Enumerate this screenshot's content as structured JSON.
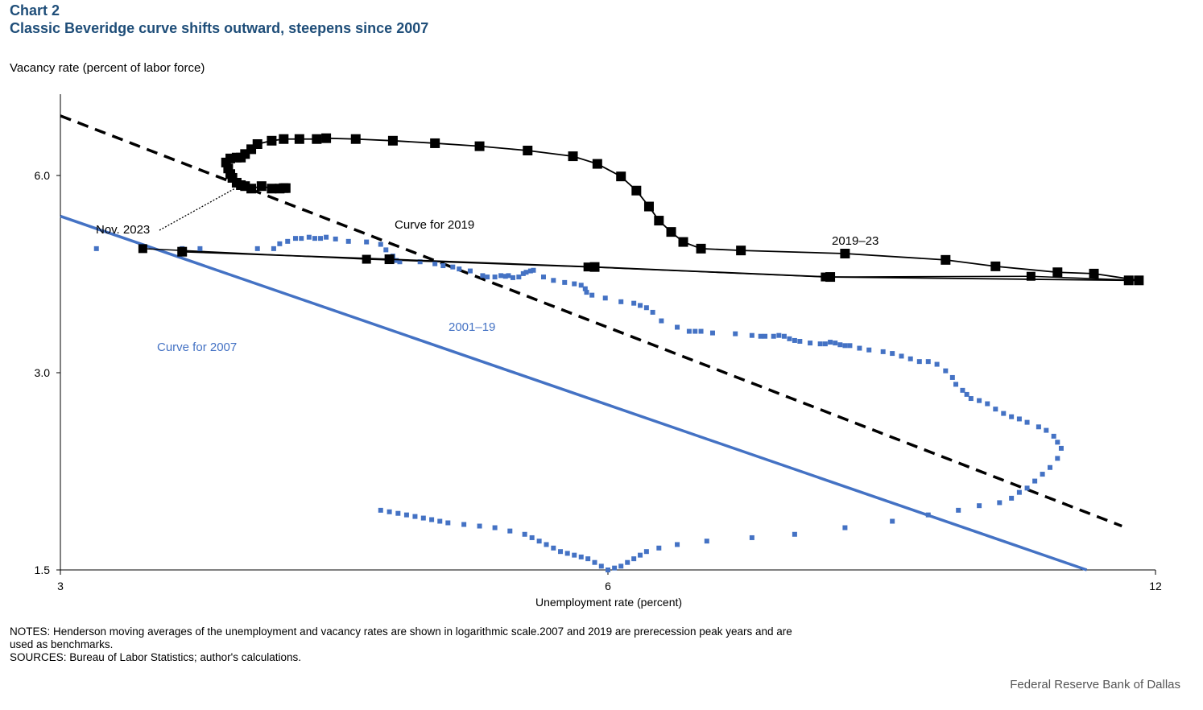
{
  "header": {
    "chart_number": "Chart 2",
    "title": "Classic Beveridge curve shifts outward, steepens since 2007"
  },
  "footer": {
    "notes": "NOTES: Henderson moving averages of the unemployment and vacancy rates are shown in logarithmic scale.2007 and 2019 are prerecession peak years and are used as benchmarks.",
    "sources": "SOURCES: Bureau of Labor Statistics; author's calculations.",
    "credit": "Federal Reserve Bank of Dallas"
  },
  "chart_data": {
    "type": "scatter",
    "xlabel": "Unemployment  rate (percent)",
    "ylabel": "Vacancy rate (percent of labor force)",
    "x_scale": "log",
    "y_scale": "log",
    "xlim": [
      3,
      12
    ],
    "ylim": [
      1.5,
      7.5
    ],
    "x_ticks": [
      3,
      6,
      12
    ],
    "x_tick_labels": [
      "3",
      "6",
      "12"
    ],
    "y_ticks": [
      1.5,
      3.0,
      6.0
    ],
    "y_tick_labels": [
      "1.5",
      "3.0",
      "6.0"
    ],
    "grid": false,
    "colors": {
      "black": "#000000",
      "blue": "#4472c4",
      "title_blue": "#1f4e79"
    },
    "annotations": {
      "nov_2023": "Nov. 2023",
      "curve_2019": "Curve for 2019",
      "curve_2007": "Curve for 2007",
      "period_2001_19": "2001–19",
      "period_2019_23": "2019–23"
    },
    "series": [
      {
        "name": "2019–23",
        "style": "black line with square markers",
        "points": [
          [
            3.5,
            4.59
          ],
          [
            4.55,
            4.47
          ],
          [
            5.9,
            4.35
          ],
          [
            7.95,
            4.2
          ],
          [
            11.6,
            4.15
          ],
          [
            11.75,
            4.15
          ],
          [
            11.1,
            4.25
          ],
          [
            10.6,
            4.27
          ],
          [
            9.8,
            4.36
          ],
          [
            9.2,
            4.46
          ],
          [
            8.1,
            4.56
          ],
          [
            7.1,
            4.61
          ],
          [
            6.75,
            4.64
          ],
          [
            6.6,
            4.75
          ],
          [
            6.5,
            4.92
          ],
          [
            6.4,
            5.12
          ],
          [
            6.32,
            5.38
          ],
          [
            6.22,
            5.69
          ],
          [
            6.1,
            5.98
          ],
          [
            5.92,
            6.25
          ],
          [
            5.74,
            6.42
          ],
          [
            5.42,
            6.55
          ],
          [
            5.1,
            6.65
          ],
          [
            4.82,
            6.72
          ],
          [
            4.57,
            6.78
          ],
          [
            4.36,
            6.82
          ],
          [
            4.2,
            6.84
          ],
          [
            4.15,
            6.82
          ],
          [
            4.06,
            6.82
          ],
          [
            3.98,
            6.82
          ],
          [
            3.92,
            6.78
          ],
          [
            3.85,
            6.7
          ],
          [
            3.82,
            6.58
          ],
          [
            3.79,
            6.47
          ],
          [
            3.77,
            6.39
          ],
          [
            3.75,
            6.39
          ],
          [
            3.72,
            6.37
          ],
          [
            3.7,
            6.28
          ],
          [
            3.71,
            6.15
          ],
          [
            3.72,
            6.03
          ],
          [
            3.73,
            5.95
          ],
          [
            3.75,
            5.85
          ],
          [
            3.77,
            5.8
          ],
          [
            3.79,
            5.78
          ],
          [
            3.82,
            5.73
          ],
          [
            3.87,
            5.78
          ],
          [
            3.92,
            5.73
          ],
          [
            3.96,
            5.73
          ],
          [
            3.98,
            5.74
          ],
          [
            3.99,
            5.74
          ]
        ]
      },
      {
        "name": "2001–19",
        "style": "blue square markers",
        "points": [
          [
            3.14,
            4.64
          ],
          [
            3.5,
            4.64
          ],
          [
            3.58,
            4.64
          ],
          [
            3.85,
            4.64
          ],
          [
            3.93,
            4.64
          ],
          [
            3.96,
            4.72
          ],
          [
            4.0,
            4.76
          ],
          [
            4.04,
            4.81
          ],
          [
            4.07,
            4.81
          ],
          [
            4.11,
            4.83
          ],
          [
            4.14,
            4.81
          ],
          [
            4.17,
            4.81
          ],
          [
            4.2,
            4.83
          ],
          [
            4.25,
            4.8
          ],
          [
            4.32,
            4.76
          ],
          [
            4.42,
            4.75
          ],
          [
            4.5,
            4.71
          ],
          [
            4.53,
            4.62
          ],
          [
            4.57,
            4.52
          ],
          [
            4.59,
            4.45
          ],
          [
            4.61,
            4.43
          ],
          [
            4.73,
            4.43
          ],
          [
            4.82,
            4.4
          ],
          [
            4.87,
            4.37
          ],
          [
            4.93,
            4.35
          ],
          [
            4.97,
            4.32
          ],
          [
            5.04,
            4.29
          ],
          [
            5.12,
            4.22
          ],
          [
            5.15,
            4.2
          ],
          [
            5.2,
            4.2
          ],
          [
            5.24,
            4.22
          ],
          [
            5.27,
            4.21
          ],
          [
            5.29,
            4.22
          ],
          [
            5.32,
            4.19
          ],
          [
            5.36,
            4.2
          ],
          [
            5.39,
            4.25
          ],
          [
            5.41,
            4.27
          ],
          [
            5.44,
            4.29
          ],
          [
            5.46,
            4.3
          ],
          [
            5.53,
            4.2
          ],
          [
            5.6,
            4.15
          ],
          [
            5.68,
            4.12
          ],
          [
            5.75,
            4.1
          ],
          [
            5.8,
            4.08
          ],
          [
            5.83,
            4.03
          ],
          [
            5.84,
            3.98
          ],
          [
            5.88,
            3.94
          ],
          [
            5.98,
            3.9
          ],
          [
            6.1,
            3.85
          ],
          [
            6.2,
            3.83
          ],
          [
            6.25,
            3.8
          ],
          [
            6.3,
            3.77
          ],
          [
            6.35,
            3.71
          ],
          [
            6.42,
            3.6
          ],
          [
            6.55,
            3.52
          ],
          [
            6.65,
            3.47
          ],
          [
            6.7,
            3.47
          ],
          [
            6.75,
            3.47
          ],
          [
            6.85,
            3.45
          ],
          [
            7.05,
            3.44
          ],
          [
            7.2,
            3.42
          ],
          [
            7.28,
            3.41
          ],
          [
            7.32,
            3.41
          ],
          [
            7.4,
            3.41
          ],
          [
            7.45,
            3.42
          ],
          [
            7.5,
            3.41
          ],
          [
            7.55,
            3.38
          ],
          [
            7.6,
            3.36
          ],
          [
            7.65,
            3.35
          ],
          [
            7.75,
            3.33
          ],
          [
            7.85,
            3.32
          ],
          [
            7.9,
            3.32
          ],
          [
            7.95,
            3.34
          ],
          [
            8.0,
            3.33
          ],
          [
            8.05,
            3.31
          ],
          [
            8.1,
            3.3
          ],
          [
            8.15,
            3.3
          ],
          [
            8.25,
            3.27
          ],
          [
            8.35,
            3.25
          ],
          [
            8.5,
            3.23
          ],
          [
            8.6,
            3.21
          ],
          [
            8.7,
            3.18
          ],
          [
            8.8,
            3.15
          ],
          [
            8.9,
            3.12
          ],
          [
            9.0,
            3.12
          ],
          [
            9.1,
            3.09
          ],
          [
            9.2,
            3.02
          ],
          [
            9.28,
            2.95
          ],
          [
            9.32,
            2.88
          ],
          [
            9.4,
            2.82
          ],
          [
            9.45,
            2.78
          ],
          [
            9.5,
            2.74
          ],
          [
            9.6,
            2.72
          ],
          [
            9.7,
            2.69
          ],
          [
            9.8,
            2.64
          ],
          [
            9.9,
            2.6
          ],
          [
            10.0,
            2.57
          ],
          [
            10.1,
            2.55
          ],
          [
            10.2,
            2.52
          ],
          [
            10.35,
            2.48
          ],
          [
            10.45,
            2.45
          ],
          [
            10.55,
            2.4
          ],
          [
            10.6,
            2.35
          ],
          [
            10.65,
            2.3
          ],
          [
            10.6,
            2.22
          ],
          [
            10.5,
            2.15
          ],
          [
            10.4,
            2.1
          ],
          [
            10.3,
            2.05
          ],
          [
            10.2,
            2.0
          ],
          [
            10.1,
            1.97
          ],
          [
            10.0,
            1.93
          ],
          [
            9.85,
            1.9
          ],
          [
            9.6,
            1.88
          ],
          [
            9.35,
            1.85
          ],
          [
            9.0,
            1.82
          ],
          [
            8.6,
            1.78
          ],
          [
            8.1,
            1.74
          ],
          [
            7.6,
            1.7
          ],
          [
            7.2,
            1.68
          ],
          [
            6.8,
            1.66
          ],
          [
            6.55,
            1.64
          ],
          [
            6.4,
            1.62
          ],
          [
            6.3,
            1.6
          ],
          [
            6.25,
            1.58
          ],
          [
            6.2,
            1.56
          ],
          [
            6.15,
            1.54
          ],
          [
            6.1,
            1.52
          ],
          [
            6.05,
            1.51
          ],
          [
            6.0,
            1.5
          ],
          [
            5.95,
            1.52
          ],
          [
            5.9,
            1.54
          ],
          [
            5.85,
            1.56
          ],
          [
            5.8,
            1.57
          ],
          [
            5.75,
            1.58
          ],
          [
            5.7,
            1.59
          ],
          [
            5.65,
            1.6
          ],
          [
            5.6,
            1.62
          ],
          [
            5.55,
            1.64
          ],
          [
            5.5,
            1.66
          ],
          [
            5.45,
            1.68
          ],
          [
            5.4,
            1.7
          ],
          [
            5.3,
            1.72
          ],
          [
            5.2,
            1.74
          ],
          [
            5.1,
            1.75
          ],
          [
            5.0,
            1.76
          ],
          [
            4.9,
            1.77
          ],
          [
            4.85,
            1.78
          ],
          [
            4.8,
            1.79
          ],
          [
            4.75,
            1.8
          ],
          [
            4.7,
            1.81
          ],
          [
            4.65,
            1.82
          ],
          [
            4.6,
            1.83
          ],
          [
            4.55,
            1.84
          ],
          [
            4.5,
            1.85
          ]
        ]
      }
    ],
    "benchmark_line": {
      "name": "2007 to 2019 connector",
      "style": "black line with square markers",
      "points": [
        [
          3.33,
          4.64
        ],
        [
          4.42,
          4.47
        ],
        [
          5.85,
          4.35
        ],
        [
          7.9,
          4.2
        ],
        [
          10.25,
          4.21
        ],
        [
          11.75,
          4.15
        ]
      ]
    },
    "curves": [
      {
        "name": "Curve for 2019",
        "style": "black dashed",
        "points": [
          [
            3.0,
            7.4
          ],
          [
            11.5,
            1.75
          ]
        ]
      },
      {
        "name": "Curve for 2007",
        "style": "blue solid",
        "points": [
          [
            3.0,
            5.2
          ],
          [
            11.0,
            1.5
          ]
        ]
      }
    ]
  }
}
